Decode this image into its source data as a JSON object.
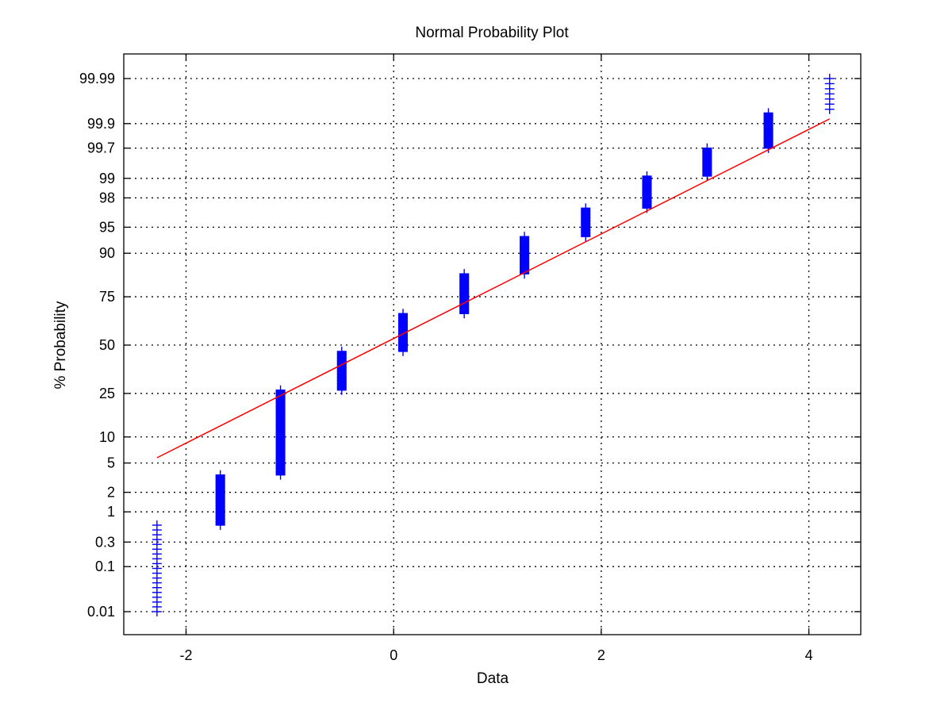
{
  "chart_data": {
    "type": "scatter",
    "title": "Normal Probability Plot",
    "xlabel": "Data",
    "ylabel": "% Probability",
    "xlim": [
      -2.6,
      4.5
    ],
    "y_scale": "normal-probability",
    "grid": true,
    "x_ticks": [
      -2,
      0,
      2,
      4
    ],
    "y_ticks": [
      0.01,
      0.1,
      0.3,
      1,
      2,
      5,
      10,
      25,
      50,
      75,
      90,
      95,
      98,
      99,
      99.7,
      99.9,
      99.99
    ],
    "y_tick_labels": [
      "0.01",
      "0.1",
      "0.3",
      "1",
      "2",
      "5",
      "10",
      "25",
      "50",
      "75",
      "90",
      "95",
      "98",
      "99",
      "99.7",
      "99.9",
      "99.99"
    ],
    "point_marker": "+",
    "point_color": "#0000ff",
    "line_color": "#ff0000",
    "clusters": [
      {
        "x": -2.28,
        "p_low": 0.01,
        "p_high": 0.6
      },
      {
        "x": -1.67,
        "p_low": 0.6,
        "p_high": 3.5
      },
      {
        "x": -1.09,
        "p_low": 3.5,
        "p_high": 26.5
      },
      {
        "x": -0.5,
        "p_low": 26.5,
        "p_high": 46.5
      },
      {
        "x": 0.09,
        "p_low": 46.5,
        "p_high": 67
      },
      {
        "x": 0.68,
        "p_low": 67,
        "p_high": 84
      },
      {
        "x": 1.26,
        "p_low": 84,
        "p_high": 93.5
      },
      {
        "x": 1.85,
        "p_low": 93.5,
        "p_high": 97.2
      },
      {
        "x": 2.44,
        "p_low": 97.2,
        "p_high": 99.08
      },
      {
        "x": 3.02,
        "p_low": 99.08,
        "p_high": 99.7
      },
      {
        "x": 3.61,
        "p_low": 99.7,
        "p_high": 99.94
      },
      {
        "x": 4.2,
        "p_low": 99.95,
        "p_high": 99.99
      }
    ],
    "fit_line": {
      "x": [
        -2.28,
        4.2
      ],
      "p": [
        5.8,
        99.92
      ]
    }
  }
}
